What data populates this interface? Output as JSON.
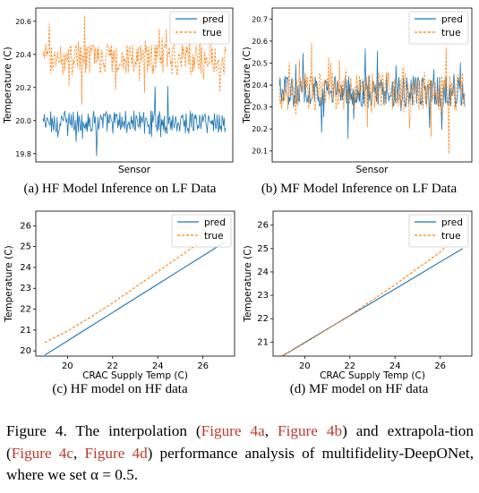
{
  "colors": {
    "pred": "#1f77b4",
    "true": "#ff7f0e",
    "caption_link": "#c0392b"
  },
  "panels": [
    {
      "caption": "(a) HF Model Inference on LF Data"
    },
    {
      "caption": "(b) MF Model Inference on LF Data"
    },
    {
      "caption": "(c) HF model on HF data"
    },
    {
      "caption": "(d) MF model on HF data"
    }
  ],
  "chart_data": [
    {
      "type": "line",
      "xlabel": "Sensor",
      "ylabel": "Temperature (C)",
      "ylim": [
        19.75,
        20.68
      ],
      "yticks": [
        "19.8",
        "20.0",
        "20.2",
        "20.4",
        "20.6"
      ],
      "legend": "top-right",
      "grid": false,
      "series": [
        {
          "name": "pred",
          "style": "solid",
          "baseline": 19.99,
          "amplitude": 0.09,
          "points": 260
        },
        {
          "name": "true",
          "style": "dashed",
          "baseline": 20.37,
          "amplitude": 0.12,
          "points": 260
        }
      ]
    },
    {
      "type": "line",
      "xlabel": "Sensor",
      "ylabel": "Temperature (C)",
      "ylim": [
        20.05,
        20.75
      ],
      "yticks": [
        "20.1",
        "20.2",
        "20.3",
        "20.4",
        "20.5",
        "20.6",
        "20.7"
      ],
      "legend": "top-right",
      "grid": false,
      "series": [
        {
          "name": "pred",
          "style": "solid",
          "baseline": 20.37,
          "amplitude": 0.09,
          "points": 260
        },
        {
          "name": "true",
          "style": "dashed",
          "baseline": 20.37,
          "amplitude": 0.11,
          "points": 260
        }
      ]
    },
    {
      "type": "line",
      "xlabel": "CRAC Supply Temp (C)",
      "ylabel": "Temperature (C)",
      "xlim": [
        18.6,
        27.4
      ],
      "ylim": [
        19.75,
        26.7
      ],
      "xticks": [
        "20",
        "22",
        "24",
        "26"
      ],
      "yticks": [
        "20",
        "21",
        "22",
        "23",
        "24",
        "25",
        "26"
      ],
      "legend": "top-right",
      "grid": false,
      "series": [
        {
          "name": "pred",
          "style": "solid",
          "x": [
            19,
            20,
            21,
            22,
            23,
            24,
            25,
            26,
            27
          ],
          "y": [
            19.8,
            20.48,
            21.16,
            21.84,
            22.52,
            23.2,
            23.88,
            24.56,
            25.24
          ]
        },
        {
          "name": "true",
          "style": "dashed",
          "x": [
            19,
            20,
            21,
            22,
            23,
            24,
            25,
            26,
            26.3
          ],
          "y": [
            20.4,
            20.95,
            21.6,
            22.3,
            23.05,
            23.8,
            24.55,
            25.3,
            25.55
          ]
        }
      ]
    },
    {
      "type": "line",
      "xlabel": "CRAC Supply Temp (C)",
      "ylabel": "Temperature (C)",
      "xlim": [
        18.6,
        27.4
      ],
      "ylim": [
        20.4,
        26.6
      ],
      "xticks": [
        "20",
        "22",
        "24",
        "26"
      ],
      "yticks": [
        "21",
        "22",
        "23",
        "24",
        "25",
        "26"
      ],
      "legend": "top-right",
      "grid": false,
      "series": [
        {
          "name": "pred",
          "style": "solid",
          "x": [
            19,
            20,
            21,
            22,
            23,
            24,
            25,
            26,
            27
          ],
          "y": [
            20.4,
            20.98,
            21.56,
            22.13,
            22.7,
            23.27,
            23.85,
            24.43,
            25.0
          ]
        },
        {
          "name": "true",
          "style": "dashed",
          "x": [
            19,
            20,
            21,
            22,
            23,
            24,
            25,
            26,
            26.5
          ],
          "y": [
            20.4,
            20.95,
            21.55,
            22.15,
            22.8,
            23.45,
            24.15,
            24.85,
            25.3
          ]
        }
      ]
    }
  ],
  "figure_caption": {
    "prefix": "Figure 4.  The interpolation (",
    "ref_a": "Figure 4a",
    "sep1": ", ",
    "ref_b": "Figure 4b",
    "mid": ") and extrapola-tion (",
    "ref_c": "Figure 4c",
    "sep2": ", ",
    "ref_d": "Figure 4d",
    "suffix": ") performance analysis of multifidelity-DeepONet, where we set α = 0.5."
  }
}
